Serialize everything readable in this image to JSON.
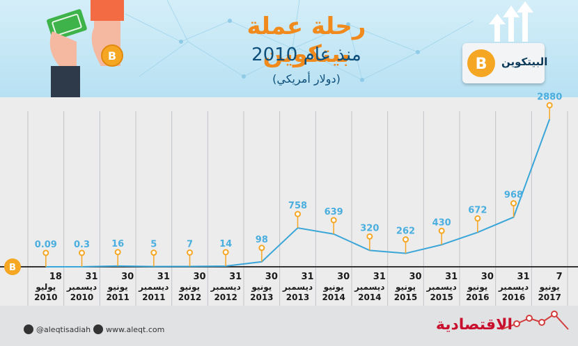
{
  "header": {
    "title": "رحلة عملة بيتكوين",
    "subtitle": "منذ عام 2010",
    "unit": "(دولار أمريكي)",
    "badge_label": "البيتكوين"
  },
  "footer": {
    "twitter": "@aleqtisadiah",
    "website": "www.aleqt.com",
    "brand": "الاقتصادية"
  },
  "colors": {
    "line": "#3aa6d8",
    "marker": "#f5a623",
    "label": "#4aaede",
    "axis": "#333333",
    "title": "#f08a1c",
    "subtitle": "#0d4f7a",
    "grid": "#bfc3c7"
  },
  "chart_data": {
    "type": "line",
    "categories": [
      {
        "day": "18",
        "month": "يوليو",
        "year": "2010"
      },
      {
        "day": "31",
        "month": "ديسمبر",
        "year": "2010"
      },
      {
        "day": "30",
        "month": "يونيو",
        "year": "2011"
      },
      {
        "day": "31",
        "month": "ديسمبر",
        "year": "2011"
      },
      {
        "day": "30",
        "month": "يونيو",
        "year": "2012"
      },
      {
        "day": "31",
        "month": "ديسمبر",
        "year": "2012"
      },
      {
        "day": "30",
        "month": "يونيو",
        "year": "2013"
      },
      {
        "day": "31",
        "month": "ديسمبر",
        "year": "2013"
      },
      {
        "day": "30",
        "month": "يونيو",
        "year": "2014"
      },
      {
        "day": "31",
        "month": "ديسمبر",
        "year": "2014"
      },
      {
        "day": "30",
        "month": "يونيو",
        "year": "2015"
      },
      {
        "day": "31",
        "month": "ديسمبر",
        "year": "2015"
      },
      {
        "day": "30",
        "month": "يونيو",
        "year": "2016"
      },
      {
        "day": "31",
        "month": "ديسمبر",
        "year": "2016"
      },
      {
        "day": "7",
        "month": "يونيو",
        "year": "2017"
      }
    ],
    "values": [
      0.09,
      0.3,
      16,
      5,
      7,
      14,
      98,
      758,
      639,
      320,
      262,
      430,
      672,
      968,
      2880
    ],
    "value_labels": [
      "0.09",
      "0.3",
      "16",
      "5",
      "7",
      "14",
      "98",
      "758",
      "639",
      "320",
      "262",
      "430",
      "672",
      "968",
      "2880"
    ],
    "ylim": [
      0,
      2900
    ],
    "grid": true
  }
}
